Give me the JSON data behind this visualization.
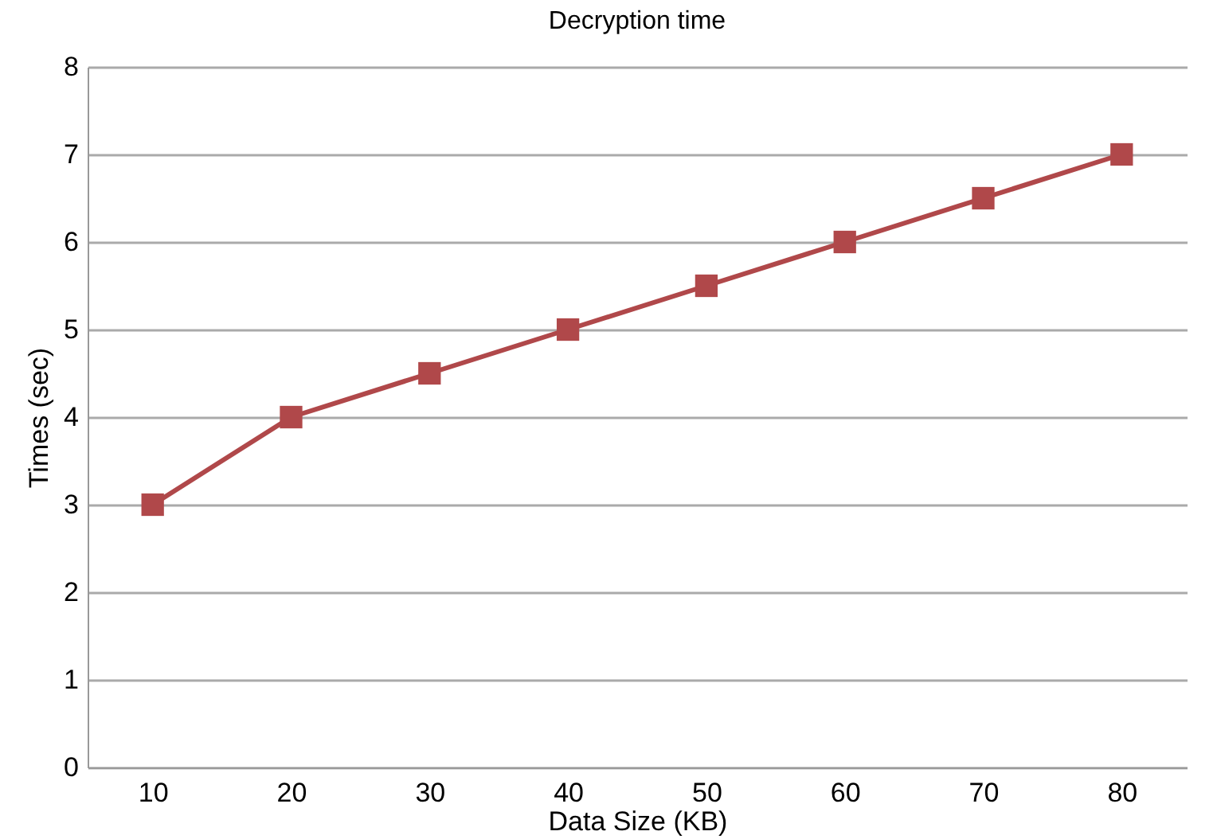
{
  "chart_data": {
    "type": "line",
    "title": "Decryption time",
    "xlabel": "Data Size (KB)",
    "ylabel": "Times (sec)",
    "categories": [
      "10",
      "20",
      "30",
      "40",
      "50",
      "60",
      "70",
      "80"
    ],
    "series": [
      {
        "color": "#b0484a",
        "values": [
          3,
          4,
          4.5,
          5,
          5.5,
          6,
          6.5,
          7
        ]
      }
    ],
    "ylim": [
      0,
      8
    ],
    "yticks": [
      0,
      1,
      2,
      3,
      4,
      5,
      6,
      7,
      8
    ],
    "grid": "y",
    "marker": "square",
    "line_style": "solid"
  }
}
